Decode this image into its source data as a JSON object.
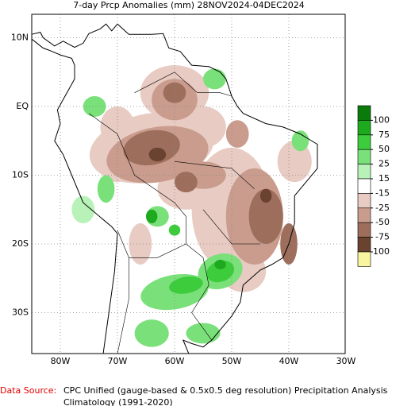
{
  "title": "7-day Prcp Anomalies (mm) 28NOV2024-04DEC2024",
  "x_axis": {
    "labels": [
      "80W",
      "70W",
      "60W",
      "50W",
      "40W",
      "30W"
    ]
  },
  "y_axis": {
    "labels": [
      "10N",
      "EQ",
      "10S",
      "20S",
      "30S"
    ]
  },
  "legend": {
    "labels": [
      100,
      75,
      50,
      25,
      15,
      -15,
      -25,
      -50,
      -75,
      -100
    ],
    "colors": [
      "#0a7a0a",
      "#1eaa1e",
      "#3ccc3c",
      "#7ae07a",
      "#b8f2b8",
      "#ffffff",
      "#e8cbc2",
      "#c99c8e",
      "#9e6e5c",
      "#6a4230",
      "#f8f4a0"
    ]
  },
  "footer": {
    "source_label": "Data Source:",
    "source_text": "CPC Unified (gauge-based & 0.5x0.5 deg resolution) Precipitation Analysis",
    "climatology": "Climatology (1991-2020)"
  }
}
